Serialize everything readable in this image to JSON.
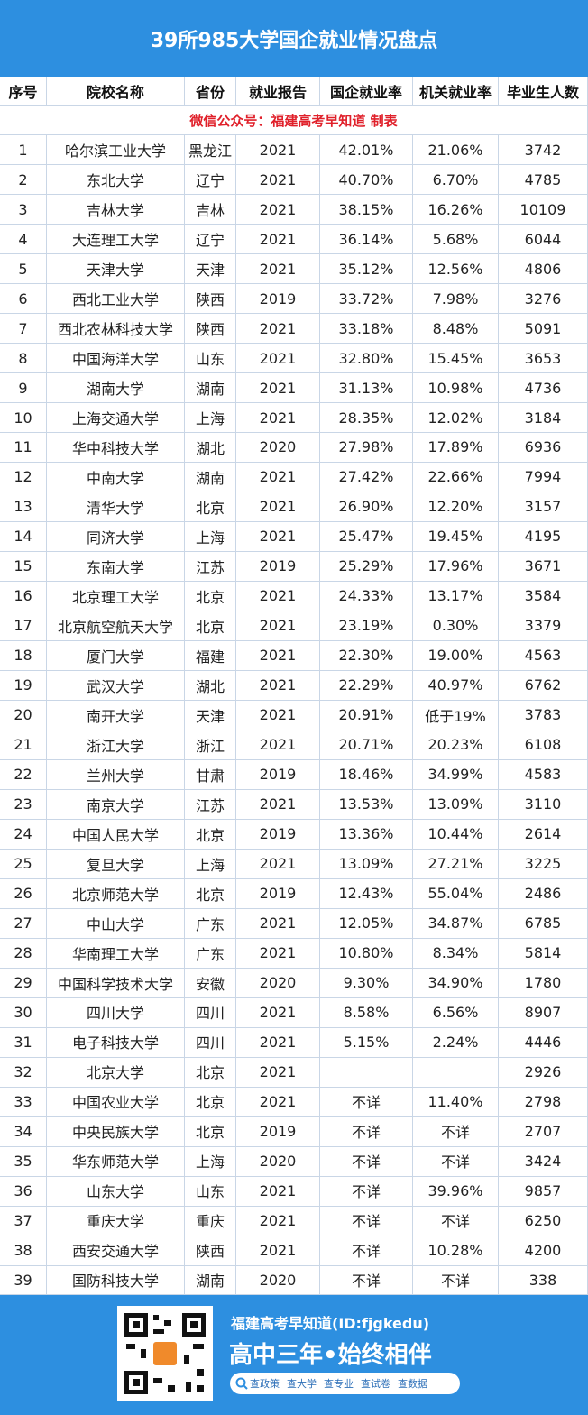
{
  "header": {
    "title": "39所985大学国企就业情况盘点",
    "columns": [
      "序号",
      "院校名称",
      "省份",
      "就业报告",
      "国企就业率",
      "机关就业率",
      "毕业生人数"
    ],
    "subtitle": "微信公众号：福建高考早知道  制表"
  },
  "table": {
    "rows": [
      [
        "1",
        "哈尔滨工业大学",
        "黑龙江",
        "2021",
        "42.01%",
        "21.06%",
        "3742"
      ],
      [
        "2",
        "东北大学",
        "辽宁",
        "2021",
        "40.70%",
        "6.70%",
        "4785"
      ],
      [
        "3",
        "吉林大学",
        "吉林",
        "2021",
        "38.15%",
        "16.26%",
        "10109"
      ],
      [
        "4",
        "大连理工大学",
        "辽宁",
        "2021",
        "36.14%",
        "5.68%",
        "6044"
      ],
      [
        "5",
        "天津大学",
        "天津",
        "2021",
        "35.12%",
        "12.56%",
        "4806"
      ],
      [
        "6",
        "西北工业大学",
        "陕西",
        "2019",
        "33.72%",
        "7.98%",
        "3276"
      ],
      [
        "7",
        "西北农林科技大学",
        "陕西",
        "2021",
        "33.18%",
        "8.48%",
        "5091"
      ],
      [
        "8",
        "中国海洋大学",
        "山东",
        "2021",
        "32.80%",
        "15.45%",
        "3653"
      ],
      [
        "9",
        "湖南大学",
        "湖南",
        "2021",
        "31.13%",
        "10.98%",
        "4736"
      ],
      [
        "10",
        "上海交通大学",
        "上海",
        "2021",
        "28.35%",
        "12.02%",
        "3184"
      ],
      [
        "11",
        "华中科技大学",
        "湖北",
        "2020",
        "27.98%",
        "17.89%",
        "6936"
      ],
      [
        "12",
        "中南大学",
        "湖南",
        "2021",
        "27.42%",
        "22.66%",
        "7994"
      ],
      [
        "13",
        "清华大学",
        "北京",
        "2021",
        "26.90%",
        "12.20%",
        "3157"
      ],
      [
        "14",
        "同济大学",
        "上海",
        "2021",
        "25.47%",
        "19.45%",
        "4195"
      ],
      [
        "15",
        "东南大学",
        "江苏",
        "2019",
        "25.29%",
        "17.96%",
        "3671"
      ],
      [
        "16",
        "北京理工大学",
        "北京",
        "2021",
        "24.33%",
        "13.17%",
        "3584"
      ],
      [
        "17",
        "北京航空航天大学",
        "北京",
        "2021",
        "23.19%",
        "0.30%",
        "3379"
      ],
      [
        "18",
        "厦门大学",
        "福建",
        "2021",
        "22.30%",
        "19.00%",
        "4563"
      ],
      [
        "19",
        "武汉大学",
        "湖北",
        "2021",
        "22.29%",
        "40.97%",
        "6762"
      ],
      [
        "20",
        "南开大学",
        "天津",
        "2021",
        "20.91%",
        "低于19%",
        "3783"
      ],
      [
        "21",
        "浙江大学",
        "浙江",
        "2021",
        "20.71%",
        "20.23%",
        "6108"
      ],
      [
        "22",
        "兰州大学",
        "甘肃",
        "2019",
        "18.46%",
        "34.99%",
        "4583"
      ],
      [
        "23",
        "南京大学",
        "江苏",
        "2021",
        "13.53%",
        "13.09%",
        "3110"
      ],
      [
        "24",
        "中国人民大学",
        "北京",
        "2019",
        "13.36%",
        "10.44%",
        "2614"
      ],
      [
        "25",
        "复旦大学",
        "上海",
        "2021",
        "13.09%",
        "27.21%",
        "3225"
      ],
      [
        "26",
        "北京师范大学",
        "北京",
        "2019",
        "12.43%",
        "55.04%",
        "2486"
      ],
      [
        "27",
        "中山大学",
        "广东",
        "2021",
        "12.05%",
        "34.87%",
        "6785"
      ],
      [
        "28",
        "华南理工大学",
        "广东",
        "2021",
        "10.80%",
        "8.34%",
        "5814"
      ],
      [
        "29",
        "中国科学技术大学",
        "安徽",
        "2020",
        "9.30%",
        "34.90%",
        "1780"
      ],
      [
        "30",
        "四川大学",
        "四川",
        "2021",
        "8.58%",
        "6.56%",
        "8907"
      ],
      [
        "31",
        "电子科技大学",
        "四川",
        "2021",
        "5.15%",
        "2.24%",
        "4446"
      ],
      [
        "32",
        "北京大学",
        "北京",
        "2021",
        null,
        null,
        "2926"
      ],
      [
        "33",
        "中国农业大学",
        "北京",
        "2021",
        "不详",
        "11.40%",
        "2798"
      ],
      [
        "34",
        "中央民族大学",
        "北京",
        "2019",
        "不详",
        "不详",
        "2707"
      ],
      [
        "35",
        "华东师范大学",
        "上海",
        "2020",
        "不详",
        "不详",
        "3424"
      ],
      [
        "36",
        "山东大学",
        "山东",
        "2021",
        "不详",
        "39.96%",
        "9857"
      ],
      [
        "37",
        "重庆大学",
        "重庆",
        "2021",
        "不详",
        "不详",
        "6250"
      ],
      [
        "38",
        "西安交通大学",
        "陕西",
        "2021",
        "不详",
        "10.28%",
        "4200"
      ],
      [
        "39",
        "国防科技大学",
        "湖南",
        "2020",
        "不详",
        "不详",
        "338"
      ]
    ]
  },
  "footer": {
    "account": "福建高考早知道(ID:fjgkedu)",
    "slogan": "高中三年•始终相伴",
    "links": [
      "查政策",
      "查大学",
      "查专业",
      "查试卷",
      "查数据"
    ]
  }
}
